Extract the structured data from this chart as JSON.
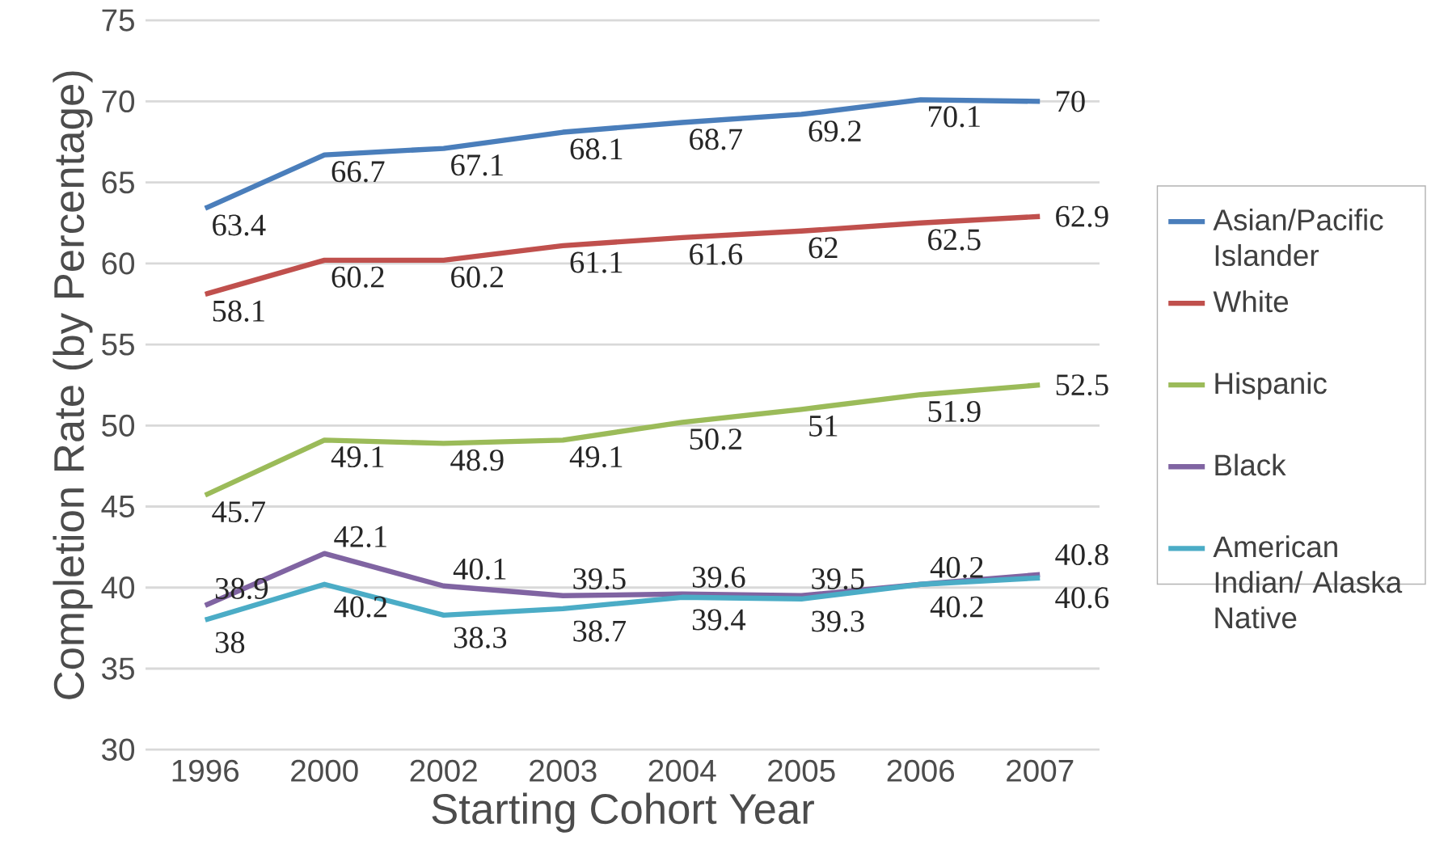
{
  "chart_data": {
    "type": "line",
    "xlabel": "Starting Cohort Year",
    "ylabel": "Completion Rate (by Percentage)",
    "categories": [
      "1996",
      "2000",
      "2002",
      "2003",
      "2004",
      "2005",
      "2006",
      "2007"
    ],
    "series": [
      {
        "name": "Asian/Pacific Islander",
        "color": "#4a7ebb",
        "values": [
          63.4,
          66.7,
          67.1,
          68.1,
          68.7,
          69.2,
          70.1,
          70
        ]
      },
      {
        "name": "White",
        "color": "#c0504d",
        "values": [
          58.1,
          60.2,
          60.2,
          61.1,
          61.6,
          62,
          62.5,
          62.9
        ]
      },
      {
        "name": "Hispanic",
        "color": "#9bbb59",
        "values": [
          45.7,
          49.1,
          48.9,
          49.1,
          50.2,
          51,
          51.9,
          52.5
        ]
      },
      {
        "name": "Black",
        "color": "#8064a2",
        "values": [
          38.9,
          42.1,
          40.1,
          39.5,
          39.6,
          39.5,
          40.2,
          40.8
        ]
      },
      {
        "name": "American Indian/ Alaska Native",
        "color": "#4bacc6",
        "values": [
          38,
          40.2,
          38.3,
          38.7,
          39.4,
          39.3,
          40.2,
          40.6
        ]
      }
    ],
    "ylim": [
      30,
      75
    ],
    "yticks": [
      30,
      35,
      40,
      45,
      50,
      55,
      60,
      65,
      70,
      75
    ],
    "grid": "y",
    "legend": "right",
    "data_labels": true,
    "line_style": "solid"
  }
}
